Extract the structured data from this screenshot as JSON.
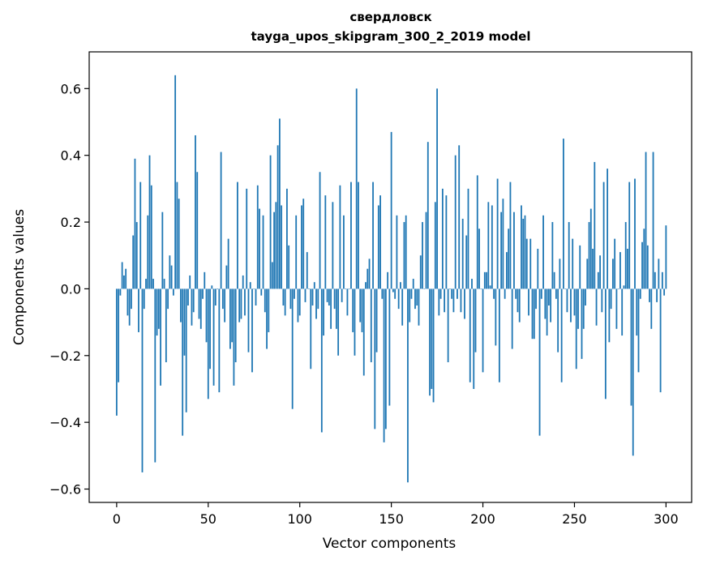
{
  "chart_data": {
    "type": "bar",
    "title": "свердловск",
    "subtitle": "tayga_upos_skipgram_300_2_2019 model",
    "xlabel": "Vector components",
    "ylabel": "Components values",
    "xlim": [
      -15,
      314
    ],
    "ylim": [
      -0.64,
      0.71
    ],
    "x_ticks": [
      0,
      50,
      100,
      150,
      200,
      250,
      300
    ],
    "y_ticks": [
      -0.6,
      -0.4,
      -0.2,
      0.0,
      0.2,
      0.4,
      0.6
    ],
    "y_tick_labels": [
      "−0.6",
      "−0.4",
      "−0.2",
      "0.0",
      "0.2",
      "0.4",
      "0.6"
    ],
    "bar_color": "#1f77b4",
    "values": [
      -0.38,
      -0.28,
      -0.02,
      0.08,
      0.04,
      0.06,
      -0.08,
      -0.11,
      -0.06,
      0.16,
      0.39,
      0.2,
      -0.13,
      0.32,
      -0.55,
      -0.06,
      0.03,
      0.22,
      0.4,
      0.31,
      0.03,
      -0.52,
      -0.14,
      -0.12,
      -0.29,
      0.23,
      0.03,
      -0.22,
      -0.06,
      0.1,
      0.07,
      -0.02,
      0.64,
      0.32,
      0.27,
      -0.1,
      -0.44,
      -0.2,
      -0.37,
      -0.05,
      0.04,
      -0.11,
      -0.07,
      0.46,
      0.35,
      -0.09,
      -0.12,
      -0.03,
      0.05,
      -0.16,
      -0.33,
      -0.24,
      0.01,
      -0.29,
      -0.05,
      0.0,
      -0.31,
      0.41,
      -0.06,
      -0.1,
      0.07,
      0.15,
      -0.18,
      -0.16,
      -0.29,
      -0.22,
      0.32,
      -0.1,
      -0.09,
      0.04,
      -0.08,
      0.3,
      -0.19,
      0.02,
      -0.25,
      0.0,
      -0.05,
      0.31,
      0.24,
      -0.02,
      0.22,
      -0.07,
      -0.18,
      -0.13,
      0.4,
      0.08,
      0.23,
      0.26,
      0.43,
      0.51,
      0.25,
      -0.05,
      -0.08,
      0.3,
      0.13,
      -0.06,
      -0.36,
      -0.03,
      0.22,
      -0.1,
      -0.08,
      0.25,
      0.27,
      -0.04,
      0.11,
      0.0,
      -0.24,
      -0.05,
      0.02,
      -0.09,
      -0.06,
      0.35,
      -0.43,
      -0.14,
      0.28,
      -0.04,
      -0.05,
      -0.12,
      0.26,
      -0.06,
      -0.12,
      -0.2,
      0.31,
      -0.04,
      0.22,
      0.0,
      -0.08,
      0.0,
      0.32,
      -0.13,
      -0.2,
      0.6,
      0.32,
      -0.1,
      -0.13,
      -0.26,
      0.02,
      0.06,
      0.09,
      -0.22,
      0.32,
      -0.42,
      -0.19,
      0.25,
      0.28,
      -0.03,
      -0.46,
      -0.42,
      0.05,
      -0.35,
      0.47,
      -0.01,
      -0.03,
      0.22,
      -0.06,
      0.02,
      -0.11,
      0.2,
      0.22,
      -0.58,
      -0.1,
      -0.03,
      0.03,
      -0.06,
      -0.05,
      -0.11,
      0.1,
      0.2,
      0.0,
      0.23,
      0.44,
      -0.32,
      -0.3,
      -0.34,
      0.26,
      0.6,
      -0.08,
      -0.03,
      0.3,
      -0.07,
      0.28,
      -0.22,
      0.0,
      -0.03,
      -0.07,
      0.4,
      -0.03,
      0.43,
      -0.07,
      0.21,
      -0.09,
      0.16,
      0.3,
      -0.28,
      0.03,
      -0.3,
      -0.19,
      0.34,
      0.18,
      0.0,
      -0.25,
      0.05,
      0.05,
      0.26,
      0.01,
      0.25,
      -0.03,
      -0.17,
      0.33,
      -0.28,
      0.23,
      0.27,
      -0.03,
      0.11,
      0.18,
      0.32,
      -0.18,
      0.23,
      -0.03,
      -0.07,
      -0.1,
      0.25,
      0.21,
      0.22,
      0.15,
      -0.08,
      0.15,
      -0.15,
      -0.15,
      -0.06,
      0.12,
      -0.44,
      -0.03,
      0.22,
      -0.09,
      -0.14,
      -0.05,
      -0.1,
      0.2,
      0.05,
      -0.03,
      -0.19,
      0.09,
      -0.28,
      0.45,
      0.0,
      -0.07,
      0.2,
      -0.1,
      0.15,
      -0.08,
      -0.24,
      -0.12,
      0.13,
      -0.21,
      -0.12,
      -0.05,
      0.09,
      0.2,
      0.24,
      0.12,
      0.38,
      -0.11,
      0.05,
      0.1,
      -0.07,
      0.32,
      -0.33,
      0.36,
      -0.16,
      -0.06,
      0.09,
      0.15,
      -0.12,
      0.0,
      0.11,
      -0.14,
      0.01,
      0.2,
      0.12,
      0.32,
      -0.35,
      -0.5,
      0.33,
      -0.14,
      -0.25,
      -0.03,
      0.14,
      0.18,
      0.41,
      0.13,
      -0.04,
      -0.12,
      0.41,
      0.05,
      -0.04,
      0.09,
      -0.31,
      0.05,
      -0.02,
      0.19
    ]
  }
}
